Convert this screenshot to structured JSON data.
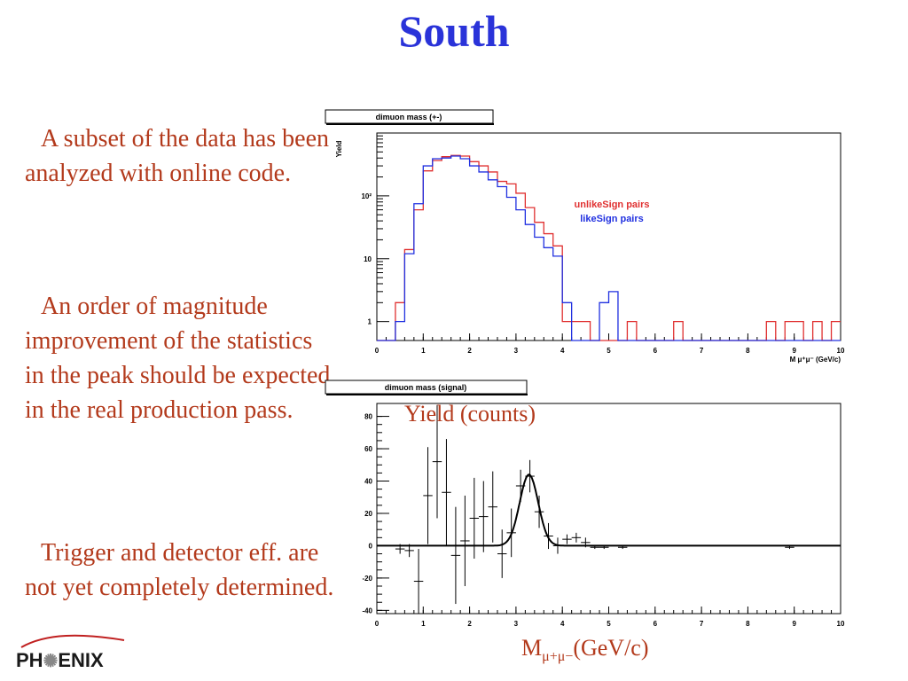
{
  "slide": {
    "title": "South",
    "paragraphs": [
      "A subset of the data has been analyzed with online code.",
      "An order of magnitude improvement of the statistics in the peak should be expected in the real production pass.",
      "Trigger and detector eff. are not yet completely determined."
    ],
    "yield_caption": "Yield (counts)",
    "mass_caption_main": "M",
    "mass_caption_sub": "μ+μ−",
    "mass_caption_unit": "(GeV/c)",
    "logo": {
      "pre": "PH",
      "post": "ENIX"
    }
  },
  "colors": {
    "title": "#2a33d9",
    "text": "#b33a1c",
    "unlike": "#e03030",
    "like": "#2030e0"
  },
  "chart_data": [
    {
      "type": "line",
      "title": "dimuon mass (+-)",
      "ylabel": "Yield",
      "xlabel": "M μ⁺μ⁻ (GeV/c)",
      "xlim": [
        0,
        10
      ],
      "yscale": "log",
      "ylim": [
        0.5,
        1000
      ],
      "y_ticks": [
        {
          "v": 1,
          "label": "1"
        },
        {
          "v": 10,
          "label": "10"
        },
        {
          "v": 100,
          "label": "10²"
        }
      ],
      "x_ticks": [
        "0",
        "1",
        "2",
        "3",
        "4",
        "5",
        "6",
        "7",
        "8",
        "9",
        "10"
      ],
      "grid": false,
      "legend": "right",
      "bin_width": 0.2,
      "series": [
        {
          "name": "unlikeSign pairs",
          "color": "#e03030",
          "values": [
            0,
            0,
            2,
            14,
            60,
            250,
            365,
            420,
            440,
            430,
            350,
            300,
            240,
            170,
            155,
            110,
            65,
            38,
            25,
            16,
            1,
            1,
            1,
            0,
            0,
            0,
            0,
            1,
            0,
            0,
            0,
            0,
            1,
            0,
            0,
            0,
            0,
            0,
            0,
            0,
            0,
            0,
            1,
            0,
            1,
            1,
            0,
            1,
            0,
            1
          ]
        },
        {
          "name": "likeSign pairs",
          "color": "#2030e0",
          "values": [
            0,
            0,
            1,
            12,
            75,
            300,
            390,
            400,
            430,
            390,
            300,
            240,
            180,
            140,
            95,
            60,
            35,
            22,
            15,
            11,
            2,
            0,
            0,
            0,
            2,
            3,
            0,
            0,
            0,
            0,
            0,
            0,
            0,
            0,
            0,
            0,
            0,
            0,
            0,
            0,
            0,
            0,
            0,
            0,
            0,
            0,
            0,
            0,
            0,
            0
          ]
        }
      ]
    },
    {
      "type": "scatter",
      "title": "dimuon mass (signal)",
      "xlabel": "M μ+μ− (GeV/c)",
      "ylabel": "Yield (counts)",
      "xlim": [
        0,
        10
      ],
      "ylim": [
        -42,
        88
      ],
      "y_ticks": [
        "-40",
        "-20",
        "0",
        "20",
        "40",
        "60",
        "80"
      ],
      "x_ticks": [
        "0",
        "1",
        "2",
        "3",
        "4",
        "5",
        "6",
        "7",
        "8",
        "9",
        "10"
      ],
      "grid": false,
      "points": [
        {
          "x": 0.5,
          "y": -2,
          "err": 3
        },
        {
          "x": 0.7,
          "y": -3,
          "err": 4
        },
        {
          "x": 0.9,
          "y": -22,
          "err": 20
        },
        {
          "x": 1.1,
          "y": 31,
          "err": 30
        },
        {
          "x": 1.3,
          "y": 52,
          "err": 35
        },
        {
          "x": 1.5,
          "y": 33,
          "err": 33
        },
        {
          "x": 1.7,
          "y": -6,
          "err": 30
        },
        {
          "x": 1.9,
          "y": 3,
          "err": 28
        },
        {
          "x": 2.1,
          "y": 17,
          "err": 25
        },
        {
          "x": 2.3,
          "y": 18,
          "err": 22
        },
        {
          "x": 2.5,
          "y": 24,
          "err": 22
        },
        {
          "x": 2.7,
          "y": -5,
          "err": 15
        },
        {
          "x": 2.9,
          "y": 8,
          "err": 15
        },
        {
          "x": 3.1,
          "y": 37,
          "err": 10
        },
        {
          "x": 3.3,
          "y": 43,
          "err": 10
        },
        {
          "x": 3.5,
          "y": 21,
          "err": 10
        },
        {
          "x": 3.7,
          "y": 6,
          "err": 8
        },
        {
          "x": 3.9,
          "y": 0,
          "err": 5
        },
        {
          "x": 4.1,
          "y": 4,
          "err": 3
        },
        {
          "x": 4.3,
          "y": 5,
          "err": 3
        },
        {
          "x": 4.5,
          "y": 2,
          "err": 3
        },
        {
          "x": 4.7,
          "y": -1,
          "err": 1
        },
        {
          "x": 4.9,
          "y": -1,
          "err": 1
        },
        {
          "x": 5.3,
          "y": -1,
          "err": 1
        },
        {
          "x": 8.9,
          "y": -1,
          "err": 1
        }
      ],
      "fit": {
        "type": "gaussian",
        "mean": 3.28,
        "sigma": 0.2,
        "amplitude": 44,
        "baseline": 0
      }
    }
  ]
}
